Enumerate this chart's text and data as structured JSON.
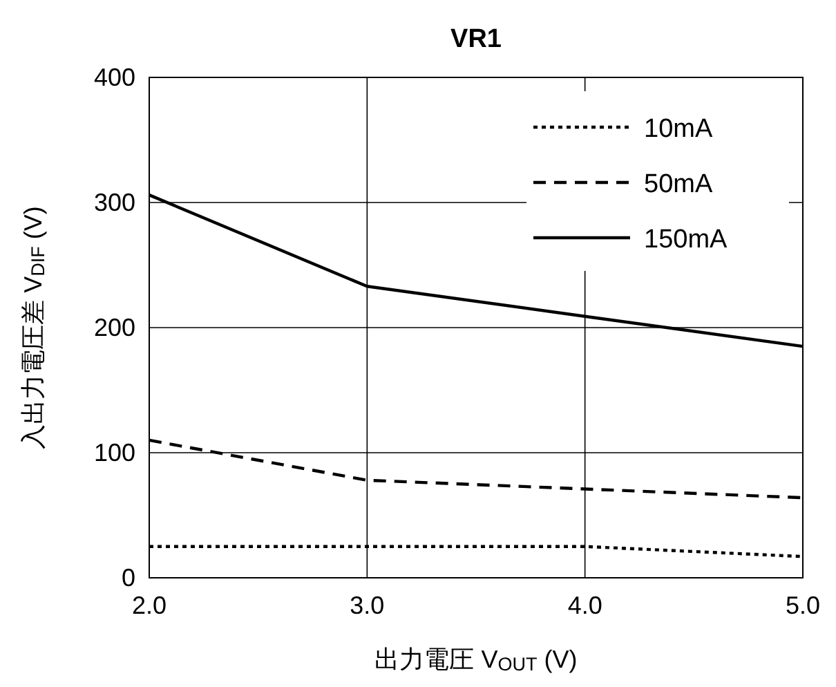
{
  "chart_data": {
    "type": "line",
    "title": "VR1",
    "xlabel": "出力電圧 V$_{OUT}$ (V)",
    "ylabel": "入出力電圧差 V$_{DIF}$ (V)",
    "x": [
      2.0,
      3.0,
      4.0,
      5.0
    ],
    "series": [
      {
        "name": "10mA",
        "color": "#000000",
        "line_style": "dotted",
        "values": [
          25,
          25,
          25,
          17
        ]
      },
      {
        "name": "50mA",
        "color": "#000000",
        "line_style": "dashed",
        "values": [
          110,
          78,
          71,
          64
        ]
      },
      {
        "name": "150mA",
        "color": "#000000",
        "line_style": "solid",
        "values": [
          306,
          233,
          209,
          185
        ]
      }
    ],
    "xlim": [
      2.0,
      5.0
    ],
    "xticks": [
      {
        "value": 2,
        "label": "2.0"
      },
      {
        "value": 3,
        "label": "3.0"
      },
      {
        "value": 4,
        "label": "4.0"
      },
      {
        "value": 5,
        "label": "5.0"
      }
    ],
    "ylim": [
      0,
      400
    ],
    "yticks": [
      0,
      100,
      200,
      300,
      400
    ],
    "grid": true,
    "legend": "top right",
    "marker": "none"
  }
}
